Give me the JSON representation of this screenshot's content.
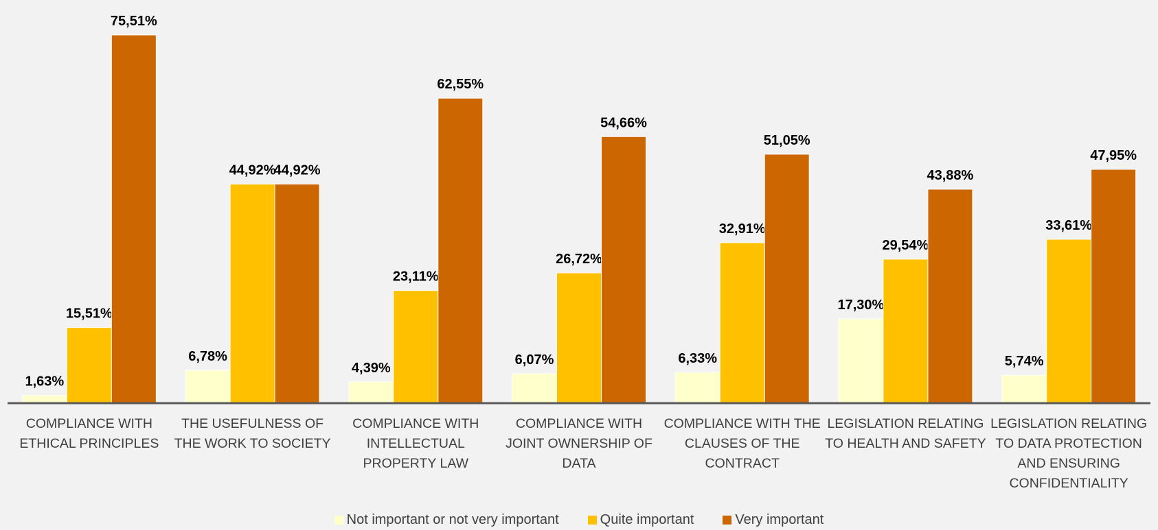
{
  "chart_data": {
    "type": "bar",
    "categories": [
      "COMPLIANCE WITH ETHICAL PRINCIPLES",
      "THE USEFULNESS OF THE WORK TO SOCIETY",
      "COMPLIANCE WITH INTELLECTUAL PROPERTY LAW",
      "COMPLIANCE WITH JOINT OWNERSHIP OF DATA",
      "COMPLIANCE WITH THE CLAUSES OF THE CONTRACT",
      "LEGISLATION RELATING TO HEALTH AND SAFETY",
      "LEGISLATION RELATING TO DATA PROTECTION AND ENSURING CONFIDENTIALITY"
    ],
    "series": [
      {
        "name": "Not important or not very important",
        "color": "#ffffcc",
        "values": [
          1.63,
          6.78,
          4.39,
          6.07,
          6.33,
          17.3,
          5.74
        ],
        "value_labels": [
          "1,63%",
          "6,78%",
          "4,39%",
          "6,07%",
          "6,33%",
          "17,30%",
          "5,74%"
        ]
      },
      {
        "name": "Quite important",
        "color": "#ffc000",
        "values": [
          15.51,
          44.92,
          23.11,
          26.72,
          32.91,
          29.54,
          33.61
        ],
        "value_labels": [
          "15,51%",
          "44,92%",
          "23,11%",
          "26,72%",
          "32,91%",
          "29,54%",
          "33,61%"
        ]
      },
      {
        "name": "Very important",
        "color": "#cc6600",
        "values": [
          75.51,
          44.92,
          62.55,
          54.66,
          51.05,
          43.88,
          47.95
        ],
        "value_labels": [
          "75,51%",
          "44,92%",
          "62,55%",
          "54,66%",
          "51,05%",
          "43,88%",
          "47,95%"
        ]
      }
    ]
  }
}
